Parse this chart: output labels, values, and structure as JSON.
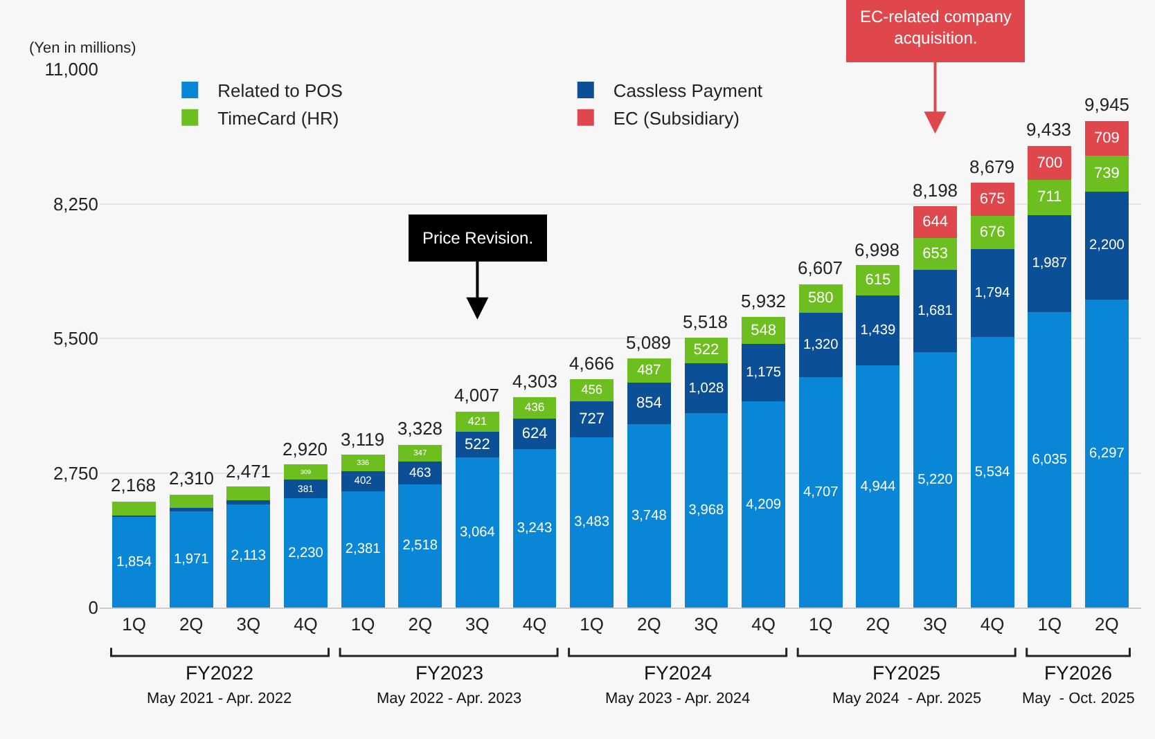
{
  "chart_data": {
    "type": "bar",
    "stacked": true,
    "ylabel": "(Yen in millions)",
    "categories": [
      "1Q",
      "2Q",
      "3Q",
      "4Q",
      "1Q",
      "2Q",
      "3Q",
      "4Q",
      "1Q",
      "2Q",
      "3Q",
      "4Q",
      "1Q",
      "2Q",
      "3Q",
      "4Q",
      "1Q",
      "2Q"
    ],
    "series": [
      {
        "name": "Related to POS",
        "color": "#0a86d6",
        "values": [
          1854,
          1971,
          2113,
          2230,
          2381,
          2518,
          3064,
          3243,
          3483,
          3748,
          3968,
          4209,
          4707,
          4944,
          5220,
          5534,
          6035,
          6297
        ],
        "value_labels": [
          "1,854",
          "1,971",
          "2,113",
          "2,230",
          "2,381",
          "2,518",
          "3,064",
          "3,243",
          "3,483",
          "3,748",
          "3,968",
          "4,209",
          "4,707",
          "4,944",
          "5,220",
          "5,534",
          "6,035",
          "6,297"
        ]
      },
      {
        "name": "Cassless Payment",
        "color": "#0b4f96",
        "values": [
          26,
          68,
          74,
          381,
          402,
          463,
          522,
          624,
          727,
          854,
          1028,
          1175,
          1320,
          1439,
          1681,
          1794,
          1987,
          2200
        ],
        "value_labels": [
          null,
          null,
          null,
          "381",
          "402",
          "463",
          "522",
          "624",
          "727",
          "854",
          "1,028",
          "1,175",
          "1,320",
          "1,439",
          "1,681",
          "1,794",
          "1,987",
          "2,200"
        ]
      },
      {
        "name": "TimeCard (HR)",
        "color": "#6cbf1f",
        "values": [
          288,
          271,
          284,
          309,
          336,
          347,
          421,
          436,
          456,
          487,
          522,
          548,
          580,
          615,
          653,
          676,
          711,
          739
        ],
        "value_labels": [
          null,
          null,
          null,
          "309",
          "336",
          "347",
          "421",
          "436",
          "456",
          "487",
          "522",
          "548",
          "580",
          "615",
          "653",
          "676",
          "711",
          "739"
        ]
      },
      {
        "name": "EC (Subsidiary)",
        "color": "#e0474c",
        "values": [
          null,
          null,
          null,
          null,
          null,
          null,
          null,
          null,
          null,
          null,
          null,
          null,
          null,
          null,
          644,
          675,
          700,
          709
        ],
        "value_labels": [
          null,
          null,
          null,
          null,
          null,
          null,
          null,
          null,
          null,
          null,
          null,
          null,
          null,
          null,
          "644",
          "675",
          "700",
          "709"
        ]
      }
    ],
    "totals": [
      "2,168",
      "2,310",
      "2,471",
      "2,920",
      "3,119",
      "3,328",
      "4,007",
      "4,303",
      "4,666",
      "5,089",
      "5,518",
      "5,932",
      "6,607",
      "6,998",
      "8,198",
      "8,679",
      "9,433",
      "9,945"
    ],
    "ylim": [
      0,
      11000
    ],
    "yticks": [
      {
        "value": 0,
        "label": "0"
      },
      {
        "value": 2750,
        "label": "2,750"
      },
      {
        "value": 5500,
        "label": "5,500"
      },
      {
        "value": 8250,
        "label": "8,250"
      },
      {
        "value": 11000,
        "label": "11,000"
      }
    ],
    "grid": "y",
    "legend": "top left",
    "annotations": [
      "Price Revision.",
      "EC-related company\nacquisition.",
      "FY2022",
      "May 2021 - Apr. 2022",
      "FY2023",
      "May 2022 - Apr. 2023",
      "FY2024",
      "May 2023 - Apr. 2024",
      "FY2025",
      "May 2024  - Apr. 2025",
      "FY2026",
      "May  - Oct. 2025"
    ]
  }
}
